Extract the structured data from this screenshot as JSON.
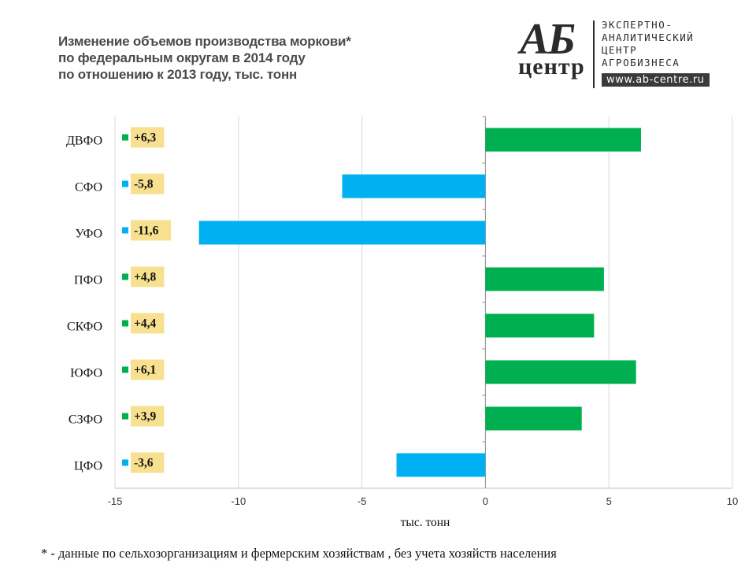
{
  "title_lines": [
    "Изменение объемов производства моркови*",
    "по федеральным округам в 2014 году",
    "по отношению к 2013 году, тыс. тонн"
  ],
  "logo": {
    "letters": "АБ",
    "word": "центр",
    "text_lines": [
      "ЭКСПЕРТНО-",
      "АНАЛИТИЧЕСКИЙ",
      "ЦЕНТР",
      "АГРОБИЗНЕСА"
    ],
    "url": "www.ab-centre.ru"
  },
  "footnote": "* - данные по сельхозорганизациям и фермерским хозяйствам , без учета хозяйств населения",
  "colors": {
    "positive": "#00b050",
    "negative": "#00b0f0",
    "label_background": "#f7e08f",
    "gridline": "#d9d9d9"
  },
  "chart_data": {
    "type": "bar",
    "orientation": "horizontal",
    "categories": [
      "ДВФО",
      "СФО",
      "УФО",
      "ПФО",
      "СКФО",
      "ЮФО",
      "СЗФО",
      "ЦФО"
    ],
    "values": [
      6.3,
      -5.8,
      -11.6,
      4.8,
      4.4,
      6.1,
      3.9,
      -3.6
    ],
    "data_labels": [
      "+6,3",
      "-5,8",
      "-11,6",
      "+4,8",
      "+4,4",
      "+6,1",
      "+3,9",
      "-3,6"
    ],
    "xlabel": "тыс. тонн",
    "xlim": [
      -15,
      10
    ],
    "xticks": [
      -15,
      -10,
      -5,
      0,
      5,
      10
    ],
    "xtick_labels": [
      "-15",
      "-10",
      "-5",
      "0",
      "5",
      "10"
    ],
    "grid": true,
    "legend": "none"
  }
}
